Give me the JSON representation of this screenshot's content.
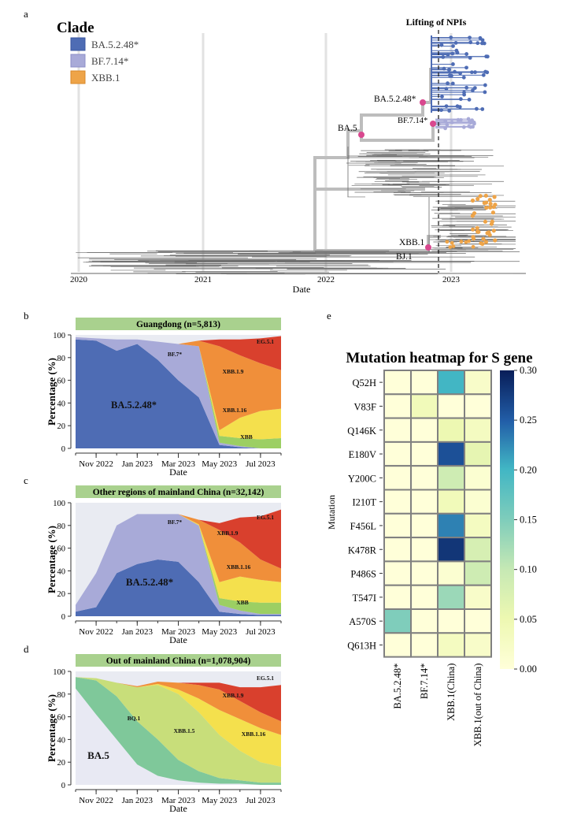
{
  "panel_labels": {
    "a": "a",
    "b": "b",
    "c": "c",
    "d": "d",
    "e": "e"
  },
  "colors": {
    "ba5248": "#4e6cb4",
    "bf714": "#a8aad8",
    "xbb1": "#eea448",
    "tree_gray": "#6a6a6a",
    "backbone": "#bdbdbd",
    "node_pink": "#d9488f",
    "banner_green": "#a9d18e",
    "eg51": "#d9402d",
    "xbb19": "#f08f3a",
    "xbb116": "#f4e04d",
    "xbb": "#9ccf63",
    "bq1": "#7fc89a",
    "xbb15": "#c8de7a",
    "ba5": "#e8e9f3",
    "other": "#9aa0a6"
  },
  "tree": {
    "legend_title": "Clade",
    "legend_items": [
      "BA.5.2.48*",
      "BF.7.14*",
      "XBB.1"
    ],
    "nodes": [
      "Lifting of NPIs",
      "BA.5.2.48*",
      "BF.7.14*",
      "BA.5",
      "XBB.1",
      "BJ.1"
    ],
    "xlabel": "Date",
    "xticks": [
      "2020",
      "2021",
      "2022",
      "2023"
    ]
  },
  "areas": {
    "ylabel": "Percentage (%)",
    "xlabel": "Date",
    "yticks": [
      "0",
      "20",
      "40",
      "60",
      "80",
      "100"
    ],
    "xticks": [
      "Nov 2022",
      "Jan 2023",
      "Mar 2023",
      "May 2023",
      "Jul 2023"
    ],
    "b": {
      "title": "Guangdong (n=5,813)",
      "x": [
        "2022-10",
        "2022-11",
        "2022-12",
        "2023-01",
        "2023-02",
        "2023-03",
        "2023-04",
        "2023-05",
        "2023-06",
        "2023-07",
        "2023-08"
      ],
      "series": [
        {
          "name": "BA.5.2.48*",
          "values": [
            96,
            95,
            86,
            92,
            78,
            60,
            45,
            3,
            1,
            0,
            0
          ]
        },
        {
          "name": "BF.7*",
          "values": [
            2,
            2,
            10,
            4,
            16,
            32,
            45,
            2,
            1,
            0,
            0
          ]
        },
        {
          "name": "XBB",
          "values": [
            0,
            0,
            0,
            0,
            0,
            0,
            0,
            6,
            7,
            8,
            9
          ]
        },
        {
          "name": "XBB.1.16",
          "values": [
            0,
            0,
            0,
            0,
            0,
            0,
            0,
            5,
            18,
            25,
            26
          ]
        },
        {
          "name": "XBB.1.9",
          "values": [
            0,
            0,
            0,
            0,
            0,
            0,
            5,
            74,
            55,
            42,
            34
          ]
        },
        {
          "name": "EG.5.1",
          "values": [
            0,
            0,
            0,
            0,
            0,
            0,
            0,
            6,
            14,
            22,
            30
          ]
        }
      ],
      "labels": [
        "BA.5.2.48*",
        "BF.7*",
        "XBB.1.9",
        "XBB.1.16",
        "XBB",
        "EG.5.1"
      ]
    },
    "c": {
      "title": "Other regions of mainland China (n=32,142)",
      "x": [
        "2022-10",
        "2022-11",
        "2022-12",
        "2023-01",
        "2023-02",
        "2023-03",
        "2023-04",
        "2023-05",
        "2023-06",
        "2023-07",
        "2023-08"
      ],
      "series": [
        {
          "name": "BA.5.2.48*",
          "values": [
            4,
            8,
            38,
            46,
            50,
            48,
            30,
            4,
            2,
            1,
            1
          ]
        },
        {
          "name": "BF.7*",
          "values": [
            6,
            30,
            42,
            44,
            40,
            42,
            50,
            6,
            3,
            1,
            1
          ]
        },
        {
          "name": "XBB",
          "values": [
            0,
            0,
            0,
            0,
            0,
            0,
            0,
            6,
            8,
            10,
            10
          ]
        },
        {
          "name": "XBB.1.16",
          "values": [
            0,
            0,
            0,
            0,
            0,
            0,
            1,
            14,
            22,
            20,
            18
          ]
        },
        {
          "name": "XBB.1.9",
          "values": [
            0,
            0,
            0,
            0,
            0,
            0,
            4,
            46,
            30,
            18,
            12
          ]
        },
        {
          "name": "EG.5.1",
          "values": [
            0,
            0,
            0,
            0,
            0,
            0,
            0,
            6,
            22,
            38,
            52
          ]
        }
      ],
      "labels": [
        "BA.5.2.48*",
        "BF.7*",
        "XBB.1.9",
        "XBB.1.16",
        "XBB",
        "EG.5.1"
      ]
    },
    "d": {
      "title": "Out of mainland China (n=1,078,904)",
      "x": [
        "2022-10",
        "2022-11",
        "2022-12",
        "2023-01",
        "2023-02",
        "2023-03",
        "2023-04",
        "2023-05",
        "2023-06",
        "2023-07",
        "2023-08"
      ],
      "series": [
        {
          "name": "BA.5",
          "values": [
            85,
            62,
            40,
            18,
            8,
            4,
            2,
            1,
            1,
            0,
            0
          ]
        },
        {
          "name": "BQ.1",
          "values": [
            10,
            30,
            38,
            38,
            32,
            18,
            10,
            5,
            3,
            2,
            2
          ]
        },
        {
          "name": "XBB.1.5",
          "values": [
            0,
            2,
            12,
            30,
            48,
            58,
            52,
            38,
            26,
            18,
            14
          ]
        },
        {
          "name": "XBB.1.16",
          "values": [
            0,
            0,
            0,
            0,
            1,
            4,
            12,
            22,
            28,
            30,
            28
          ]
        },
        {
          "name": "XBB.1.9",
          "values": [
            0,
            0,
            0,
            1,
            2,
            6,
            12,
            18,
            16,
            14,
            12
          ]
        },
        {
          "name": "EG.5.1",
          "values": [
            0,
            0,
            0,
            0,
            0,
            0,
            2,
            6,
            12,
            22,
            32
          ]
        }
      ],
      "labels": [
        "BA.5",
        "BQ.1",
        "XBB.1.5",
        "XBB.1.16",
        "XBB.1.9",
        "EG.5.1"
      ]
    }
  },
  "chart_data": {
    "type": "heatmap",
    "title": "Mutation heatmap for S gene",
    "ylabel": "Mutation",
    "rows": [
      "Q52H",
      "V83F",
      "Q146K",
      "E180V",
      "Y200C",
      "I210T",
      "F456L",
      "K478R",
      "P486S",
      "T547I",
      "A570S",
      "Q613H"
    ],
    "columns": [
      "BA.5.2.48*",
      "BF.7.14*",
      "XBB.1(China)",
      "XBB.1(out of China)"
    ],
    "values": [
      [
        0.0,
        0.0,
        0.2,
        0.02
      ],
      [
        0.0,
        0.04,
        0.0,
        0.0
      ],
      [
        0.0,
        0.0,
        0.05,
        0.03
      ],
      [
        0.0,
        0.0,
        0.26,
        0.06
      ],
      [
        0.0,
        0.0,
        0.09,
        0.01
      ],
      [
        0.0,
        0.0,
        0.04,
        0.01
      ],
      [
        0.0,
        0.0,
        0.23,
        0.03
      ],
      [
        0.0,
        0.0,
        0.28,
        0.08
      ],
      [
        0.0,
        0.0,
        0.01,
        0.09
      ],
      [
        0.0,
        0.0,
        0.13,
        0.02
      ],
      [
        0.15,
        0.0,
        0.0,
        0.0
      ],
      [
        0.0,
        0.0,
        0.03,
        0.02
      ]
    ],
    "colorbar_ticks": [
      "0.00",
      "0.05",
      "0.10",
      "0.15",
      "0.20",
      "0.25",
      "0.30"
    ],
    "vmin": 0,
    "vmax": 0.3
  }
}
